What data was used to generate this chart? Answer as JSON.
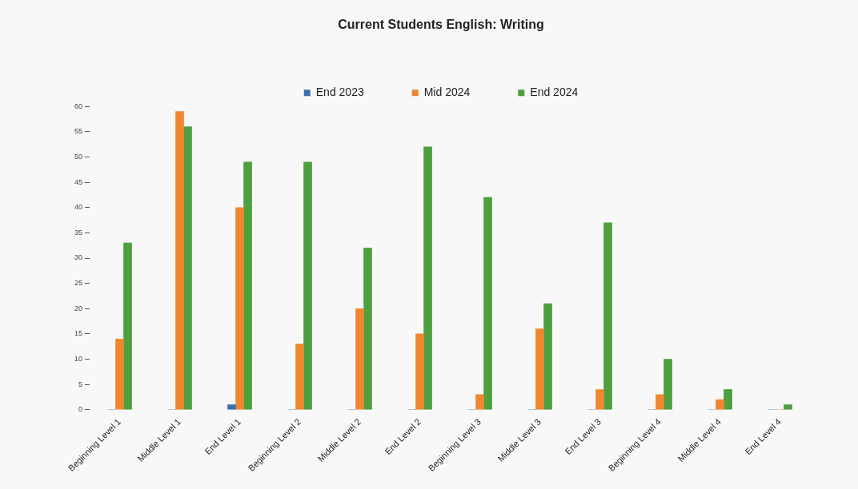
{
  "chart_data": {
    "type": "bar",
    "title": "Current Students English: Writing",
    "categories": [
      "Beginning Level 1",
      "Middle Level 1",
      "End Level 1",
      "Beginning Level 2",
      "Middle Level 2",
      "End Level 2",
      "Beginning Level 3",
      "Middle Level 3",
      "End Level 3",
      "Beginning Level 4",
      "Middle Level 4",
      "End Level 4"
    ],
    "series": [
      {
        "name": "End 2023",
        "color": "#3a6fb0",
        "values": [
          0,
          0,
          1,
          0,
          0,
          0,
          0,
          0,
          0,
          0,
          0,
          0
        ]
      },
      {
        "name": "Mid 2024",
        "color": "#f0862f",
        "values": [
          14,
          59,
          40,
          13,
          20,
          15,
          3,
          16,
          4,
          3,
          2,
          0
        ]
      },
      {
        "name": "End 2024",
        "color": "#4e9f3d",
        "values": [
          33,
          56,
          49,
          49,
          32,
          52,
          42,
          21,
          37,
          10,
          4,
          1
        ]
      }
    ],
    "ylim": [
      0,
      60
    ],
    "yticks": [
      0,
      5,
      10,
      15,
      20,
      25,
      30,
      35,
      40,
      45,
      50,
      55,
      60
    ],
    "grid": false,
    "legend": "top"
  }
}
